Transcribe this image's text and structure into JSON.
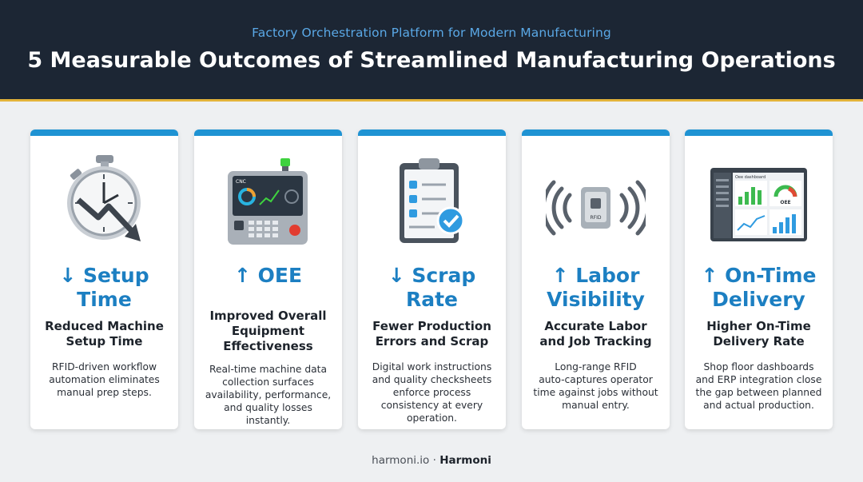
{
  "header": {
    "subtitle": "Factory Orchestration Platform for Modern Manufacturing",
    "title": "5 Measurable Outcomes of Streamlined Manufacturing Operations"
  },
  "colors": {
    "header_bg": "#1c2634",
    "accent_bar": "#e3b33a",
    "card_top": "#1f93d3",
    "metric_text": "#1c7fc2",
    "subtitle_text": "#5aa8e6"
  },
  "cards": [
    {
      "icon": "stopwatch-down-arrow-icon",
      "metric_line1": "↓ Setup",
      "metric_line2": "Time",
      "heading_lines": [
        "Reduced Machine",
        "Setup Time"
      ],
      "desc_lines": [
        "RFID-driven workflow",
        "automation eliminates",
        "manual prep steps."
      ]
    },
    {
      "icon": "cnc-control-panel-icon",
      "metric_line1": "↑ OEE",
      "metric_line2": "",
      "heading_lines": [
        "Improved Overall",
        "Equipment",
        "Effectiveness"
      ],
      "desc_lines": [
        "Real-time machine data",
        "collection surfaces",
        "availability, performance,",
        "and quality losses instantly."
      ]
    },
    {
      "icon": "clipboard-checklist-icon",
      "metric_line1": "↓ Scrap",
      "metric_line2": "Rate",
      "heading_lines": [
        "Fewer Production",
        "Errors and Scrap"
      ],
      "desc_lines": [
        "Digital work instructions",
        "and quality checksheets",
        "enforce process",
        "consistency at every",
        "operation."
      ]
    },
    {
      "icon": "rfid-tag-signal-icon",
      "metric_line1": "↑ Labor",
      "metric_line2": "Visibility",
      "heading_lines": [
        "Accurate Labor",
        "and Job Tracking"
      ],
      "desc_lines": [
        "Long-range RFID",
        "auto-captures operator",
        "time against jobs without",
        "manual entry."
      ]
    },
    {
      "icon": "dashboard-screen-icon",
      "metric_line1": "↑ On-Time",
      "metric_line2": "Delivery",
      "heading_lines": [
        "Higher On-Time",
        "Delivery Rate"
      ],
      "desc_lines": [
        "Shop floor dashboards",
        "and ERP integration close",
        "the gap between planned",
        "and actual production."
      ]
    }
  ],
  "illustration_text": {
    "cnc_label": "CNC",
    "rfid_label": "RFID",
    "dashboard_title": "Oee dashboard",
    "oee_label": "OEE"
  },
  "footer": {
    "site": "harmoni.io",
    "separator": " · ",
    "brand": "Harmoni"
  }
}
